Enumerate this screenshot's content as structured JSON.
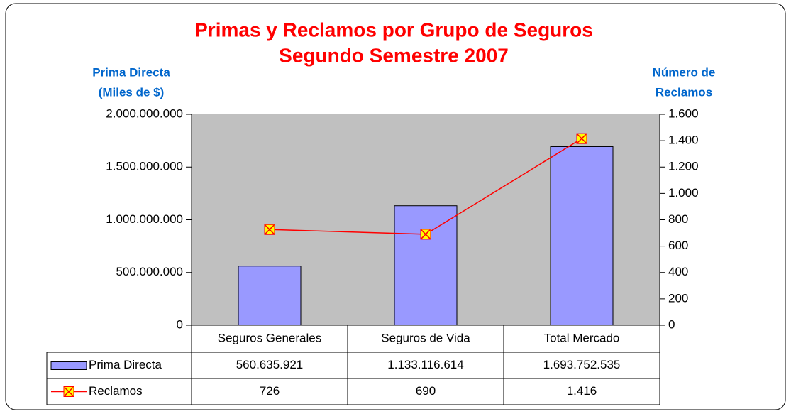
{
  "chart_data": {
    "type": "bar_line",
    "title": "Primas y Reclamos por Grupo de Seguros",
    "subtitle": "Segundo Semestre 2007",
    "y_label": [
      "Prima Directa",
      "(Miles de $)"
    ],
    "y2_label": [
      "Número de",
      "Reclamos"
    ],
    "categories": [
      "Seguros Generales",
      "Seguros de Vida",
      "Total Mercado"
    ],
    "series": [
      {
        "name": "Prima Directa",
        "type": "bar",
        "color": "#9999ff",
        "values": [
          560635921,
          1133116614,
          1693752535
        ],
        "value_labels": [
          "560.635.921",
          "1.133.116.614",
          "1.693.752.535"
        ]
      },
      {
        "name": "Reclamos",
        "type": "line",
        "axis": "y2",
        "color": "#ff0000",
        "marker_color": "#ffff00",
        "values": [
          726,
          690,
          1416
        ],
        "value_labels": [
          "726",
          "690",
          "1.416"
        ]
      }
    ],
    "ylim": [
      0,
      2000000000
    ],
    "yticks": [
      0,
      {
        "value": 500000000,
        "label": "500.000.000"
      },
      {
        "value": 1000000000,
        "label": "1.000.000.000"
      },
      {
        "value": 1500000000,
        "label": "1.500.000.000"
      },
      {
        "value": 2000000000,
        "label": "2.000.000.000"
      }
    ],
    "y2lim": [
      0,
      1600
    ],
    "y2ticks": [
      0,
      200,
      400,
      600,
      800,
      {
        "value": 1000,
        "label": "1.000"
      },
      {
        "value": 1200,
        "label": "1.200"
      },
      {
        "value": 1400,
        "label": "1.400"
      },
      {
        "value": 1600,
        "label": "1.600"
      }
    ],
    "plot_background": "#c0c0c0"
  }
}
